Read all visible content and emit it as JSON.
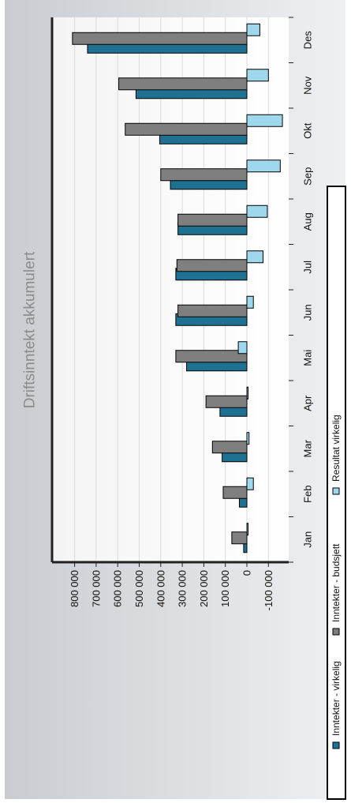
{
  "chart_data": {
    "type": "bar",
    "title": "Driftsinntekt akkumulert",
    "xlabel": "",
    "ylabel": "",
    "categories": [
      "Jan",
      "Feb",
      "Mar",
      "Apr",
      "Mai",
      "Jun",
      "Jul",
      "Aug",
      "Sep",
      "Okt",
      "Nov",
      "Des"
    ],
    "ylim": [
      -200000,
      900000
    ],
    "ytick_values": [
      800000,
      700000,
      600000,
      500000,
      400000,
      300000,
      200000,
      100000,
      0,
      -100000
    ],
    "ytick_labels": [
      "800 000",
      "700 000",
      "600 000",
      "500 000",
      "400 000",
      "300 000",
      "200 000",
      "100 000",
      "0",
      "-100 000"
    ],
    "series": [
      {
        "name": "Inntekter - virkelig",
        "color": "#1f7191",
        "values": [
          15000,
          35000,
          115000,
          125000,
          280000,
          330000,
          330000,
          320000,
          355000,
          405000,
          515000,
          740000
        ]
      },
      {
        "name": "Inntekter - budsjett",
        "color": "#7f7f7f",
        "values": [
          70000,
          110000,
          160000,
          190000,
          330000,
          320000,
          325000,
          320000,
          400000,
          565000,
          595000,
          810000
        ]
      },
      {
        "name": "Resultat virkelig",
        "color": "#9fd8ec",
        "values": [
          0,
          -30000,
          -10000,
          -5000,
          40000,
          -30000,
          -75000,
          -95000,
          -155000,
          -165000,
          -100000,
          -60000
        ]
      }
    ],
    "grid": true,
    "legend_position": "right"
  }
}
